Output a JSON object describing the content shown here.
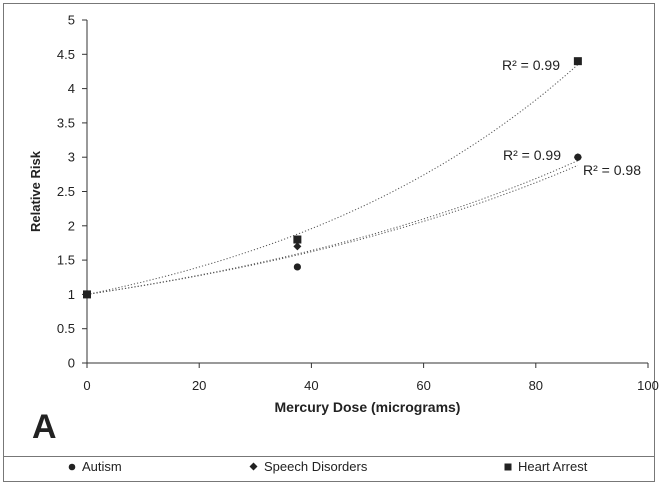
{
  "chart_data": {
    "type": "scatter",
    "panel_label": "A",
    "xlabel": "Mercury Dose (micrograms)",
    "ylabel": "Relative Risk",
    "xlim": [
      0,
      100
    ],
    "ylim": [
      0,
      5
    ],
    "x_ticks": [
      "0",
      "20",
      "40",
      "60",
      "80",
      "100"
    ],
    "y_ticks": [
      "0",
      "0.5",
      "1",
      "1.5",
      "2",
      "2.5",
      "3",
      "3.5",
      "4",
      "4.5",
      "5"
    ],
    "grid": false,
    "legend_position": "bottom",
    "series": [
      {
        "name": "Autism",
        "marker": "circle",
        "points": [
          [
            0,
            1.0
          ],
          [
            37.5,
            1.4
          ],
          [
            87.5,
            3.0
          ]
        ],
        "trend": "exponential",
        "trend_end": 2.95,
        "r2_label": "R² = 0.99"
      },
      {
        "name": "Speech Disorders",
        "marker": "diamond",
        "points": [
          [
            0,
            1.0
          ],
          [
            37.5,
            1.7
          ],
          [
            87.5,
            3.0
          ]
        ],
        "trend": "exponential",
        "trend_end": 2.88,
        "r2_label": "R² = 0.98"
      },
      {
        "name": "Heart Arrest",
        "marker": "square",
        "points": [
          [
            0,
            1.0
          ],
          [
            37.5,
            1.8
          ],
          [
            87.5,
            4.4
          ]
        ],
        "trend": "exponential",
        "trend_end": 4.35,
        "r2_label": "R² = 0.99"
      }
    ]
  }
}
